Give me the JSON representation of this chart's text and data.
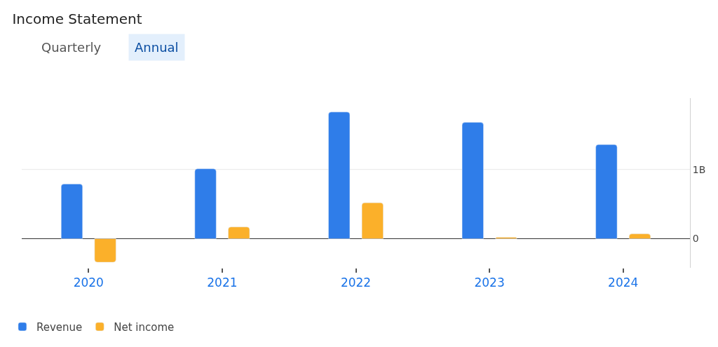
{
  "chart_data": {
    "type": "bar",
    "title": "Income Statement",
    "annotations": [
      "Quarterly",
      "Annual"
    ],
    "categories": [
      "2020",
      "2021",
      "2022",
      "2023",
      "2024"
    ],
    "series": [
      {
        "name": "Revenue",
        "color": "#2f7de9",
        "values": [
          0.79,
          1.01,
          1.83,
          1.68,
          1.36
        ]
      },
      {
        "name": "Net income",
        "color": "#fbb02a",
        "values": [
          -0.34,
          0.17,
          0.52,
          0.02,
          0.07
        ]
      }
    ],
    "ylim": [
      -0.42,
      2.03
    ],
    "yticks": [
      {
        "value": 0,
        "label": "0"
      },
      {
        "value": 1,
        "label": "1B"
      }
    ],
    "ref_lines": [
      {
        "axis": "y",
        "value": 1,
        "color": "#e6e6e6"
      }
    ],
    "legend": "bottom left"
  }
}
